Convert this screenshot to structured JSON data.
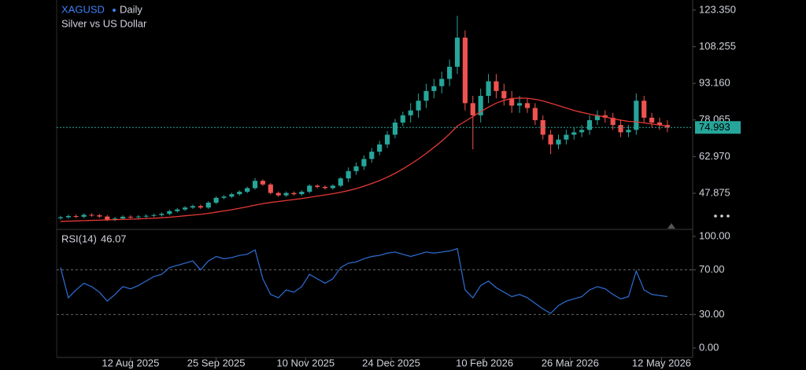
{
  "chart_data": {
    "type": "candlestick",
    "title": "XAGUSD",
    "interval": "Daily",
    "subtitle": "Silver vs US Dollar",
    "up_color": "#26a69a",
    "down_color": "#ef5350",
    "x": [
      "2025-07-07",
      "2025-07-11",
      "2025-07-15",
      "2025-07-19",
      "2025-07-23",
      "2025-07-27",
      "2025-07-31",
      "2025-08-04",
      "2025-08-08",
      "2025-08-12",
      "2025-08-16",
      "2025-08-20",
      "2025-08-24",
      "2025-08-28",
      "2025-09-01",
      "2025-09-05",
      "2025-09-09",
      "2025-09-13",
      "2025-09-17",
      "2025-09-21",
      "2025-09-25",
      "2025-09-29",
      "2025-10-03",
      "2025-10-07",
      "2025-10-11",
      "2025-10-15",
      "2025-10-19",
      "2025-10-23",
      "2025-10-27",
      "2025-10-31",
      "2025-11-04",
      "2025-11-08",
      "2025-11-12",
      "2025-11-16",
      "2025-11-20",
      "2025-11-24",
      "2025-11-28",
      "2025-12-02",
      "2025-12-06",
      "2025-12-10",
      "2025-12-14",
      "2025-12-18",
      "2025-12-22",
      "2025-12-26",
      "2025-12-30",
      "2026-01-03",
      "2026-01-07",
      "2026-01-11",
      "2026-01-15",
      "2026-01-19",
      "2026-01-23",
      "2026-01-27",
      "2026-01-31",
      "2026-02-04",
      "2026-02-08",
      "2026-02-12",
      "2026-02-16",
      "2026-02-20",
      "2026-02-24",
      "2026-02-28",
      "2026-03-04",
      "2026-03-08",
      "2026-03-12",
      "2026-03-16",
      "2026-03-20",
      "2026-03-24",
      "2026-03-28",
      "2026-04-01",
      "2026-04-05",
      "2026-04-09",
      "2026-04-13",
      "2026-04-17",
      "2026-04-21",
      "2026-04-25",
      "2026-04-29",
      "2026-05-03",
      "2026-05-07",
      "2026-05-11",
      "2026-05-15"
    ],
    "open": [
      37.6,
      38.0,
      38.5,
      38.2,
      39.0,
      38.8,
      38.3,
      37.0,
      37.5,
      38.2,
      38.0,
      38.3,
      38.6,
      38.9,
      39.4,
      40.5,
      41.2,
      42.0,
      42.6,
      42.0,
      44.0,
      46.0,
      46.5,
      47.5,
      48.5,
      50.0,
      53.0,
      51.5,
      48.0,
      47.0,
      48.0,
      47.5,
      48.5,
      51.0,
      50.5,
      50.0,
      51.0,
      54.0,
      57.0,
      59.0,
      62.0,
      65.0,
      68.0,
      72.0,
      77.0,
      80.0,
      82.0,
      86.0,
      90.0,
      92.0,
      95.0,
      100.0,
      112.0,
      85.0,
      80.0,
      88.0,
      94.0,
      90.0,
      87.0,
      84.0,
      85.0,
      83.0,
      78.0,
      72.0,
      68.0,
      70.0,
      72.0,
      73.0,
      74.0,
      78.0,
      80.0,
      79.0,
      76.0,
      73.0,
      74.0,
      86.0,
      79.0,
      77.0,
      76.0
    ],
    "high": [
      38.6,
      39.1,
      39.1,
      39.6,
      39.6,
      39.4,
      38.9,
      38.1,
      38.8,
      38.8,
      38.9,
      39.2,
      39.5,
      40.0,
      41.1,
      41.8,
      42.6,
      43.2,
      43.2,
      44.6,
      46.6,
      47.1,
      48.1,
      49.1,
      50.6,
      54.2,
      53.6,
      52.1,
      48.6,
      48.6,
      48.6,
      49.1,
      51.6,
      51.6,
      51.1,
      51.6,
      54.6,
      58.5,
      60.5,
      63.5,
      66.5,
      69.5,
      73.5,
      78.5,
      81.5,
      85.0,
      89.0,
      93.0,
      95.0,
      98.0,
      103.0,
      121.0,
      115.0,
      88.0,
      91.0,
      97.0,
      97.0,
      93.0,
      90.0,
      88.0,
      87.0,
      85.0,
      80.0,
      74.0,
      72.0,
      74.0,
      75.0,
      76.0,
      80.0,
      82.0,
      82.0,
      81.0,
      78.0,
      76.0,
      89.0,
      88.0,
      81.0,
      79.0,
      78.0
    ],
    "low": [
      37.0,
      37.4,
      37.6,
      37.6,
      38.2,
      37.7,
      36.4,
      36.4,
      36.9,
      37.4,
      37.4,
      37.7,
      38.0,
      38.3,
      38.8,
      39.9,
      40.6,
      41.4,
      41.4,
      41.4,
      43.4,
      45.4,
      45.9,
      46.9,
      47.9,
      49.4,
      50.9,
      47.4,
      46.4,
      46.4,
      46.9,
      46.9,
      47.9,
      49.9,
      49.4,
      49.4,
      50.4,
      52.5,
      55.5,
      57.5,
      60.5,
      63.5,
      66.5,
      70.5,
      75.5,
      77.0,
      79.0,
      83.0,
      87.0,
      89.0,
      92.0,
      97.0,
      82.0,
      66.0,
      77.0,
      85.0,
      87.0,
      84.0,
      81.0,
      81.0,
      81.0,
      76.0,
      70.0,
      64.0,
      66.0,
      68.0,
      70.0,
      71.0,
      72.0,
      76.0,
      77.0,
      74.0,
      71.0,
      71.0,
      72.0,
      77.0,
      75.0,
      74.0,
      73.0
    ],
    "close": [
      38.0,
      38.5,
      38.2,
      39.0,
      38.8,
      38.3,
      37.0,
      37.5,
      38.2,
      38.0,
      38.3,
      38.6,
      38.9,
      39.4,
      40.5,
      41.2,
      42.0,
      42.6,
      42.0,
      44.0,
      46.0,
      46.5,
      47.5,
      48.5,
      50.0,
      53.0,
      51.5,
      48.0,
      47.0,
      48.0,
      47.5,
      48.5,
      51.0,
      50.5,
      50.0,
      51.0,
      54.0,
      57.0,
      59.0,
      62.0,
      65.0,
      68.0,
      72.0,
      77.0,
      80.0,
      82.0,
      86.0,
      90.0,
      92.0,
      95.0,
      100.0,
      112.0,
      85.0,
      80.0,
      88.0,
      94.0,
      90.0,
      87.0,
      84.0,
      85.0,
      83.0,
      78.0,
      72.0,
      68.0,
      70.0,
      72.0,
      73.0,
      74.0,
      78.0,
      80.0,
      79.0,
      76.0,
      73.0,
      74.0,
      86.0,
      79.0,
      77.0,
      76.0,
      74.993
    ],
    "ma": {
      "color": "#e53935",
      "values": [
        36.3,
        36.4,
        36.5,
        36.6,
        36.7,
        36.8,
        36.9,
        37.0,
        37.1,
        37.2,
        37.3,
        37.5,
        37.6,
        37.8,
        38.0,
        38.3,
        38.6,
        38.9,
        39.2,
        39.6,
        40.1,
        40.6,
        41.1,
        41.7,
        42.3,
        43.0,
        43.6,
        44.1,
        44.5,
        44.9,
        45.3,
        45.7,
        46.2,
        46.7,
        47.2,
        47.7,
        48.3,
        49.0,
        49.8,
        50.8,
        51.9,
        53.1,
        54.5,
        56.1,
        57.9,
        59.9,
        62.0,
        64.3,
        66.8,
        69.4,
        72.3,
        75.6,
        77.5,
        79.5,
        81.5,
        83.4,
        85.0,
        86.2,
        86.9,
        87.1,
        87.0,
        86.6,
        85.9,
        85.0,
        84.0,
        83.0,
        82.0,
        81.2,
        80.5,
        79.9,
        79.3,
        78.6,
        78.0,
        77.5,
        77.3,
        76.9,
        76.4,
        76.0,
        75.6
      ]
    },
    "xlim": [
      "2025-07-05",
      "2026-05-28"
    ],
    "xticks": [
      {
        "value": "2025-08-12",
        "label": "12 Aug 2025"
      },
      {
        "value": "2025-09-25",
        "label": "25 Sep 2025"
      },
      {
        "value": "2025-11-10",
        "label": "10 Nov 2025"
      },
      {
        "value": "2025-12-24",
        "label": "24 Dec 2025"
      },
      {
        "value": "2026-02-10",
        "label": "10 Feb 2026"
      },
      {
        "value": "2026-03-26",
        "label": "26 Mar 2026"
      },
      {
        "value": "2026-05-12",
        "label": "12 May 2026"
      }
    ],
    "ylim": [
      33,
      127.5
    ],
    "yticks": [
      {
        "value": 123.35,
        "label": "123.350"
      },
      {
        "value": 108.255,
        "label": "108.255"
      },
      {
        "value": 93.16,
        "label": "93.160"
      },
      {
        "value": 78.065,
        "label": "78.065"
      },
      {
        "value": 62.97,
        "label": "62.970"
      },
      {
        "value": 47.875,
        "label": "47.875"
      }
    ],
    "rsi": {
      "name": "RSI(14)",
      "color": "#2f6fd6",
      "values": [
        72,
        45,
        52,
        58,
        55,
        50,
        42,
        48,
        55,
        53,
        56,
        60,
        64,
        66,
        72,
        74,
        76,
        78,
        70,
        78,
        82,
        80,
        81,
        83,
        84,
        88,
        62,
        48,
        45,
        52,
        50,
        55,
        66,
        62,
        58,
        62,
        72,
        76,
        77,
        80,
        82,
        83,
        85,
        86,
        84,
        82,
        84,
        86,
        85,
        86,
        87,
        89,
        52,
        45,
        56,
        60,
        54,
        50,
        46,
        48,
        45,
        40,
        35,
        31,
        38,
        42,
        44,
        46,
        52,
        55,
        53,
        48,
        44,
        46,
        69,
        52,
        48,
        47,
        46.07
      ],
      "ylim": [
        -8.5,
        106.3
      ],
      "yticks": [
        {
          "value": 100,
          "label": "100.00"
        },
        {
          "value": 70,
          "label": "70.00"
        },
        {
          "value": 30,
          "label": "30.00"
        },
        {
          "value": 0,
          "label": "0.00"
        }
      ],
      "levels": [
        70,
        30
      ]
    }
  }
}
